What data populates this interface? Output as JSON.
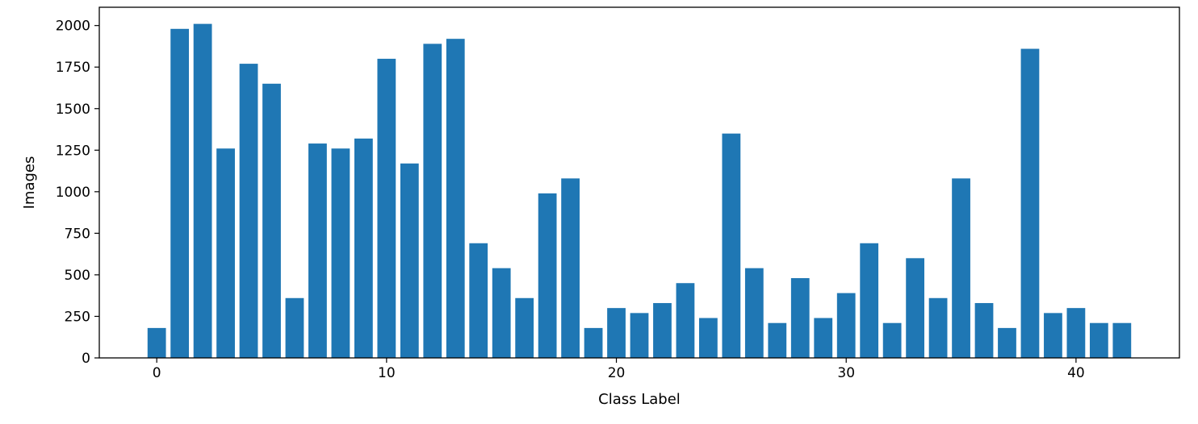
{
  "colors": {
    "bar": "#1f77b4",
    "axis": "#000000",
    "background": "#ffffff"
  },
  "chart_data": {
    "type": "bar",
    "title": "",
    "xlabel": "Class Label",
    "ylabel": "Images",
    "grid": false,
    "legend": "none",
    "xlim": [
      -2.5,
      44.5
    ],
    "ylim": [
      0,
      2110
    ],
    "xticks": [
      0,
      10,
      20,
      30,
      40
    ],
    "yticks": [
      0,
      250,
      500,
      750,
      1000,
      1250,
      1500,
      1750,
      2000
    ],
    "categories": [
      0,
      1,
      2,
      3,
      4,
      5,
      6,
      7,
      8,
      9,
      10,
      11,
      12,
      13,
      14,
      15,
      16,
      17,
      18,
      19,
      20,
      21,
      22,
      23,
      24,
      25,
      26,
      27,
      28,
      29,
      30,
      31,
      32,
      33,
      34,
      35,
      36,
      37,
      38,
      39,
      40,
      41,
      42
    ],
    "values": [
      180,
      1980,
      2010,
      1260,
      1770,
      1650,
      360,
      1290,
      1260,
      1320,
      1800,
      1170,
      1890,
      1920,
      690,
      540,
      360,
      990,
      1080,
      180,
      300,
      270,
      330,
      450,
      240,
      1350,
      540,
      210,
      480,
      240,
      390,
      690,
      210,
      600,
      360,
      1080,
      330,
      180,
      1860,
      270,
      300,
      210,
      210
    ]
  }
}
